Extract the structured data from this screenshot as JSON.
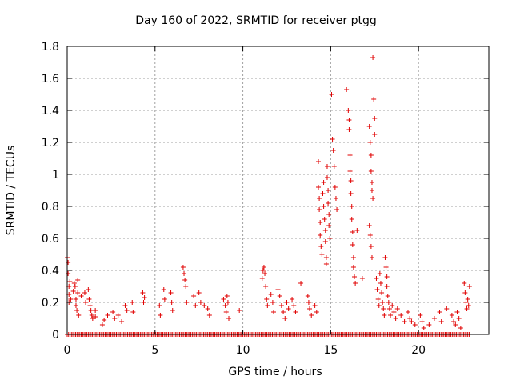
{
  "chart_data": {
    "type": "scatter",
    "title": "Day 160 of 2022, SRMTID for receiver ptgg",
    "xlabel": "GPS time / hours",
    "ylabel": "SRMTID / TECUs",
    "xlim": [
      0,
      24
    ],
    "ylim": [
      0,
      1.8
    ],
    "xticks": [
      "0",
      "5",
      "10",
      "15",
      "20"
    ],
    "yticks": [
      "0",
      "0.2",
      "0.4",
      "0.6",
      "0.8",
      "1",
      "1.2",
      "1.4",
      "1.6",
      "1.8"
    ],
    "grid": true,
    "marker": "+",
    "color": "#e00000",
    "series": [
      {
        "name": "SRMTID",
        "points": [
          [
            0.0,
            0.48
          ],
          [
            0.05,
            0.45
          ],
          [
            0.05,
            0.38
          ],
          [
            0.1,
            0.3
          ],
          [
            0.1,
            0.25
          ],
          [
            0.1,
            0.2
          ],
          [
            0.15,
            0.33
          ],
          [
            0.2,
            0.22
          ],
          [
            0.35,
            0.27
          ],
          [
            0.4,
            0.32
          ],
          [
            0.45,
            0.3
          ],
          [
            0.5,
            0.22
          ],
          [
            0.5,
            0.18
          ],
          [
            0.55,
            0.15
          ],
          [
            0.6,
            0.34
          ],
          [
            0.6,
            0.26
          ],
          [
            0.65,
            0.12
          ],
          [
            0.8,
            0.24
          ],
          [
            1.0,
            0.26
          ],
          [
            1.05,
            0.2
          ],
          [
            1.2,
            0.28
          ],
          [
            1.25,
            0.22
          ],
          [
            1.3,
            0.18
          ],
          [
            1.35,
            0.15
          ],
          [
            1.4,
            0.12
          ],
          [
            1.45,
            0.1
          ],
          [
            1.6,
            0.15
          ],
          [
            1.6,
            0.11
          ],
          [
            2.0,
            0.06
          ],
          [
            2.1,
            0.09
          ],
          [
            2.3,
            0.12
          ],
          [
            2.6,
            0.14
          ],
          [
            2.7,
            0.1
          ],
          [
            2.9,
            0.12
          ],
          [
            3.1,
            0.08
          ],
          [
            3.3,
            0.18
          ],
          [
            3.4,
            0.15
          ],
          [
            3.7,
            0.2
          ],
          [
            3.75,
            0.14
          ],
          [
            4.3,
            0.26
          ],
          [
            4.35,
            0.2
          ],
          [
            4.4,
            0.23
          ],
          [
            5.25,
            0.18
          ],
          [
            5.3,
            0.12
          ],
          [
            5.5,
            0.28
          ],
          [
            5.55,
            0.22
          ],
          [
            5.9,
            0.26
          ],
          [
            5.95,
            0.2
          ],
          [
            6.0,
            0.15
          ],
          [
            6.6,
            0.42
          ],
          [
            6.65,
            0.38
          ],
          [
            6.7,
            0.34
          ],
          [
            6.75,
            0.3
          ],
          [
            6.8,
            0.2
          ],
          [
            7.2,
            0.24
          ],
          [
            7.3,
            0.18
          ],
          [
            7.5,
            0.26
          ],
          [
            7.6,
            0.2
          ],
          [
            7.8,
            0.18
          ],
          [
            8.0,
            0.16
          ],
          [
            8.1,
            0.12
          ],
          [
            8.9,
            0.22
          ],
          [
            9.0,
            0.18
          ],
          [
            9.05,
            0.14
          ],
          [
            9.1,
            0.24
          ],
          [
            9.15,
            0.2
          ],
          [
            9.2,
            0.1
          ],
          [
            9.8,
            0.15
          ],
          [
            11.1,
            0.35
          ],
          [
            11.15,
            0.4
          ],
          [
            11.2,
            0.42
          ],
          [
            11.25,
            0.38
          ],
          [
            11.3,
            0.3
          ],
          [
            11.35,
            0.22
          ],
          [
            11.4,
            0.18
          ],
          [
            11.6,
            0.25
          ],
          [
            11.7,
            0.2
          ],
          [
            11.75,
            0.14
          ],
          [
            12.0,
            0.28
          ],
          [
            12.1,
            0.24
          ],
          [
            12.2,
            0.18
          ],
          [
            12.3,
            0.14
          ],
          [
            12.4,
            0.1
          ],
          [
            12.5,
            0.2
          ],
          [
            12.6,
            0.16
          ],
          [
            12.8,
            0.22
          ],
          [
            12.9,
            0.18
          ],
          [
            13.0,
            0.14
          ],
          [
            13.3,
            0.32
          ],
          [
            13.7,
            0.24
          ],
          [
            13.75,
            0.2
          ],
          [
            13.8,
            0.16
          ],
          [
            13.9,
            0.12
          ],
          [
            14.1,
            0.18
          ],
          [
            14.2,
            0.14
          ],
          [
            14.3,
            1.08
          ],
          [
            14.3,
            0.92
          ],
          [
            14.35,
            0.85
          ],
          [
            14.35,
            0.78
          ],
          [
            14.4,
            0.7
          ],
          [
            14.4,
            0.62
          ],
          [
            14.45,
            0.55
          ],
          [
            14.5,
            0.5
          ],
          [
            14.55,
            0.88
          ],
          [
            14.6,
            0.95
          ],
          [
            14.6,
            0.8
          ],
          [
            14.65,
            0.72
          ],
          [
            14.7,
            0.65
          ],
          [
            14.7,
            0.58
          ],
          [
            14.75,
            0.48
          ],
          [
            14.75,
            0.44
          ],
          [
            14.8,
            1.05
          ],
          [
            14.8,
            0.98
          ],
          [
            14.85,
            0.9
          ],
          [
            14.85,
            0.82
          ],
          [
            14.9,
            0.75
          ],
          [
            14.9,
            0.68
          ],
          [
            14.95,
            0.6
          ],
          [
            15.05,
            1.5
          ],
          [
            15.1,
            1.22
          ],
          [
            15.15,
            1.15
          ],
          [
            15.2,
            1.05
          ],
          [
            15.25,
            0.92
          ],
          [
            15.3,
            0.85
          ],
          [
            15.35,
            0.78
          ],
          [
            15.9,
            1.53
          ],
          [
            16.0,
            1.4
          ],
          [
            16.05,
            1.34
          ],
          [
            16.05,
            1.28
          ],
          [
            16.1,
            1.12
          ],
          [
            16.1,
            1.02
          ],
          [
            16.15,
            0.96
          ],
          [
            16.15,
            0.88
          ],
          [
            16.2,
            0.8
          ],
          [
            16.2,
            0.72
          ],
          [
            16.25,
            0.64
          ],
          [
            16.25,
            0.56
          ],
          [
            16.3,
            0.48
          ],
          [
            16.3,
            0.42
          ],
          [
            16.35,
            0.36
          ],
          [
            16.4,
            0.32
          ],
          [
            16.5,
            0.65
          ],
          [
            16.8,
            0.35
          ],
          [
            17.2,
            1.3
          ],
          [
            17.25,
            1.2
          ],
          [
            17.3,
            1.12
          ],
          [
            17.3,
            1.02
          ],
          [
            17.35,
            0.95
          ],
          [
            17.35,
            0.9
          ],
          [
            17.4,
            0.85
          ],
          [
            17.2,
            0.68
          ],
          [
            17.25,
            0.62
          ],
          [
            17.3,
            0.55
          ],
          [
            17.35,
            0.48
          ],
          [
            17.4,
            1.73
          ],
          [
            17.45,
            1.47
          ],
          [
            17.5,
            1.35
          ],
          [
            17.5,
            1.25
          ],
          [
            17.6,
            0.35
          ],
          [
            17.65,
            0.28
          ],
          [
            17.7,
            0.22
          ],
          [
            17.75,
            0.18
          ],
          [
            17.8,
            0.38
          ],
          [
            17.85,
            0.32
          ],
          [
            17.9,
            0.26
          ],
          [
            17.95,
            0.2
          ],
          [
            18.0,
            0.16
          ],
          [
            18.05,
            0.12
          ],
          [
            18.1,
            0.48
          ],
          [
            18.15,
            0.42
          ],
          [
            18.2,
            0.36
          ],
          [
            18.2,
            0.3
          ],
          [
            18.25,
            0.24
          ],
          [
            18.3,
            0.2
          ],
          [
            18.35,
            0.16
          ],
          [
            18.4,
            0.12
          ],
          [
            18.5,
            0.18
          ],
          [
            18.6,
            0.14
          ],
          [
            18.7,
            0.1
          ],
          [
            18.8,
            0.16
          ],
          [
            19.0,
            0.12
          ],
          [
            19.2,
            0.08
          ],
          [
            19.4,
            0.14
          ],
          [
            19.5,
            0.1
          ],
          [
            19.6,
            0.08
          ],
          [
            19.8,
            0.06
          ],
          [
            20.1,
            0.12
          ],
          [
            20.2,
            0.08
          ],
          [
            20.3,
            0.04
          ],
          [
            20.6,
            0.06
          ],
          [
            20.9,
            0.1
          ],
          [
            21.2,
            0.14
          ],
          [
            21.3,
            0.08
          ],
          [
            21.6,
            0.16
          ],
          [
            21.9,
            0.12
          ],
          [
            22.0,
            0.08
          ],
          [
            22.1,
            0.06
          ],
          [
            22.2,
            0.14
          ],
          [
            22.3,
            0.1
          ],
          [
            22.4,
            0.04
          ],
          [
            22.6,
            0.32
          ],
          [
            22.65,
            0.26
          ],
          [
            22.7,
            0.2
          ],
          [
            22.75,
            0.16
          ],
          [
            22.8,
            0.22
          ],
          [
            22.85,
            0.18
          ],
          [
            22.9,
            0.3
          ]
        ]
      }
    ]
  }
}
